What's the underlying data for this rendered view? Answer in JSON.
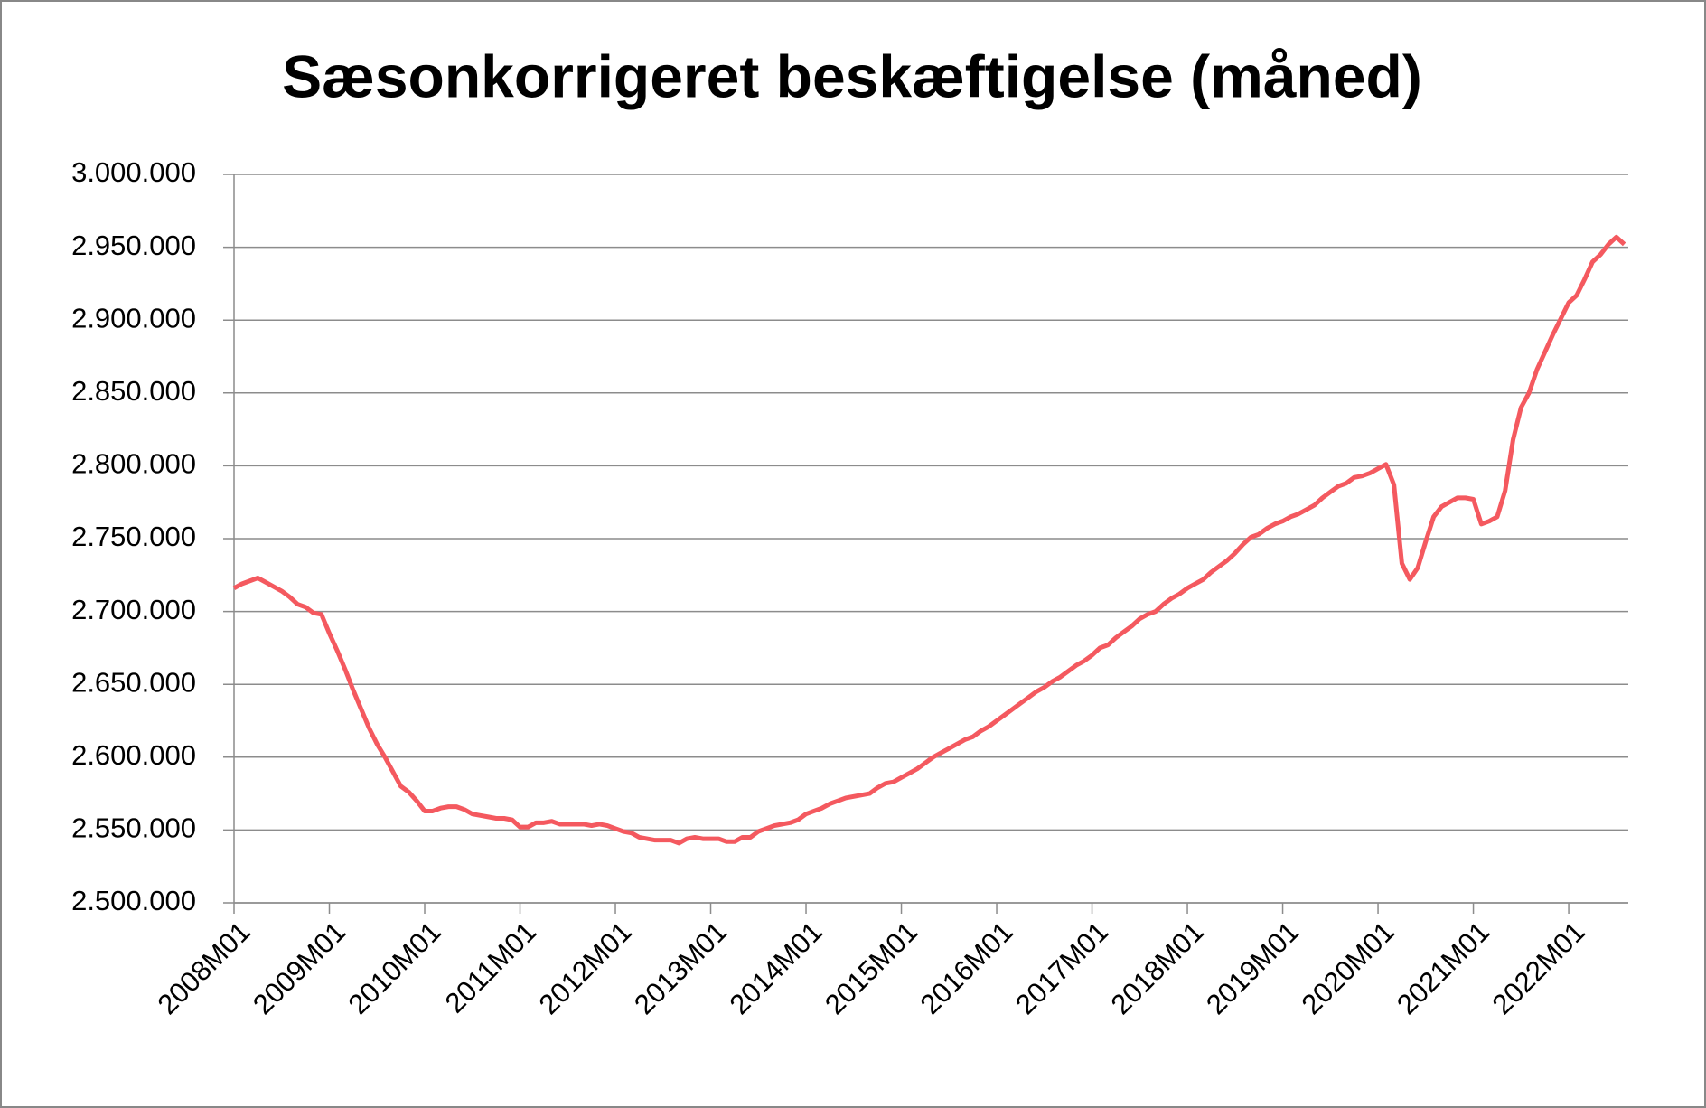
{
  "chart_data": {
    "type": "line",
    "title": "Sæsonkorrigeret beskæftigelse (måned)",
    "categories": [
      "2008M01",
      null,
      null,
      null,
      null,
      null,
      null,
      null,
      null,
      null,
      null,
      null,
      "2009M01",
      null,
      null,
      null,
      null,
      null,
      null,
      null,
      null,
      null,
      null,
      null,
      "2010M01",
      null,
      null,
      null,
      null,
      null,
      null,
      null,
      null,
      null,
      null,
      null,
      "2011M01",
      null,
      null,
      null,
      null,
      null,
      null,
      null,
      null,
      null,
      null,
      null,
      "2012M01",
      null,
      null,
      null,
      null,
      null,
      null,
      null,
      null,
      null,
      null,
      null,
      "2013M01",
      null,
      null,
      null,
      null,
      null,
      null,
      null,
      null,
      null,
      null,
      null,
      "2014M01",
      null,
      null,
      null,
      null,
      null,
      null,
      null,
      null,
      null,
      null,
      null,
      "2015M01",
      null,
      null,
      null,
      null,
      null,
      null,
      null,
      null,
      null,
      null,
      null,
      "2016M01",
      null,
      null,
      null,
      null,
      null,
      null,
      null,
      null,
      null,
      null,
      null,
      "2017M01",
      null,
      null,
      null,
      null,
      null,
      null,
      null,
      null,
      null,
      null,
      null,
      "2018M01",
      null,
      null,
      null,
      null,
      null,
      null,
      null,
      null,
      null,
      null,
      null,
      "2019M01",
      null,
      null,
      null,
      null,
      null,
      null,
      null,
      null,
      null,
      null,
      null,
      "2020M01",
      null,
      null,
      null,
      null,
      null,
      null,
      null,
      null,
      null,
      null,
      null,
      "2021M01",
      null,
      null,
      null,
      null,
      null,
      null,
      null,
      null,
      null,
      null,
      null,
      "2022M01",
      null,
      null,
      null,
      null,
      null,
      null,
      null
    ],
    "values": [
      2716000,
      2719000,
      2721000,
      2723000,
      2720000,
      2717000,
      2714000,
      2710000,
      2705000,
      2703000,
      2699000,
      2698000,
      2685000,
      2673000,
      2660000,
      2646000,
      2633000,
      2620000,
      2609000,
      2600000,
      2590000,
      2580000,
      2576000,
      2570000,
      2563000,
      2563000,
      2565000,
      2566000,
      2566000,
      2564000,
      2561000,
      2560000,
      2559000,
      2558000,
      2558000,
      2557000,
      2552000,
      2552000,
      2555000,
      2555000,
      2556000,
      2554000,
      2554000,
      2554000,
      2554000,
      2553000,
      2554000,
      2553000,
      2551000,
      2549000,
      2548000,
      2545000,
      2544000,
      2543000,
      2543000,
      2543000,
      2541000,
      2544000,
      2545000,
      2544000,
      2544000,
      2544000,
      2542000,
      2542000,
      2545000,
      2545000,
      2549000,
      2551000,
      2553000,
      2554000,
      2555000,
      2557000,
      2561000,
      2563000,
      2565000,
      2568000,
      2570000,
      2572000,
      2573000,
      2574000,
      2575000,
      2579000,
      2582000,
      2583000,
      2586000,
      2589000,
      2592000,
      2596000,
      2600000,
      2603000,
      2606000,
      2609000,
      2612000,
      2614000,
      2618000,
      2621000,
      2625000,
      2629000,
      2633000,
      2637000,
      2641000,
      2645000,
      2648000,
      2652000,
      2655000,
      2659000,
      2663000,
      2666000,
      2670000,
      2675000,
      2677000,
      2682000,
      2686000,
      2690000,
      2695000,
      2698000,
      2700000,
      2705000,
      2709000,
      2712000,
      2716000,
      2719000,
      2722000,
      2727000,
      2731000,
      2735000,
      2740000,
      2746000,
      2751000,
      2753000,
      2757000,
      2760000,
      2762000,
      2765000,
      2767000,
      2770000,
      2773000,
      2778000,
      2782000,
      2786000,
      2788000,
      2792000,
      2793000,
      2795000,
      2798000,
      2801000,
      2787000,
      2733000,
      2722000,
      2730000,
      2748000,
      2765000,
      2772000,
      2775000,
      2778000,
      2778000,
      2777000,
      2760000,
      2762000,
      2765000,
      2783000,
      2818000,
      2840000,
      2850000,
      2866000,
      2878000,
      2890000,
      2901000,
      2912000,
      2917000,
      2928000,
      2940000,
      2945000,
      2952000,
      2957000,
      2952000
    ],
    "color": "#f4595f",
    "ylim": [
      2500000,
      3000000
    ],
    "yticks": [
      {
        "value": 2500000,
        "label": "2.500.000"
      },
      {
        "value": 2550000,
        "label": "2.550.000"
      },
      {
        "value": 2600000,
        "label": "2.600.000"
      },
      {
        "value": 2650000,
        "label": "2.650.000"
      },
      {
        "value": 2700000,
        "label": "2.700.000"
      },
      {
        "value": 2750000,
        "label": "2.750.000"
      },
      {
        "value": 2800000,
        "label": "2.800.000"
      },
      {
        "value": 2850000,
        "label": "2.850.000"
      },
      {
        "value": 2900000,
        "label": "2.900.000"
      },
      {
        "value": 2950000,
        "label": "2.950.000"
      },
      {
        "value": 3000000,
        "label": "3.000.000"
      }
    ],
    "grid": true
  }
}
